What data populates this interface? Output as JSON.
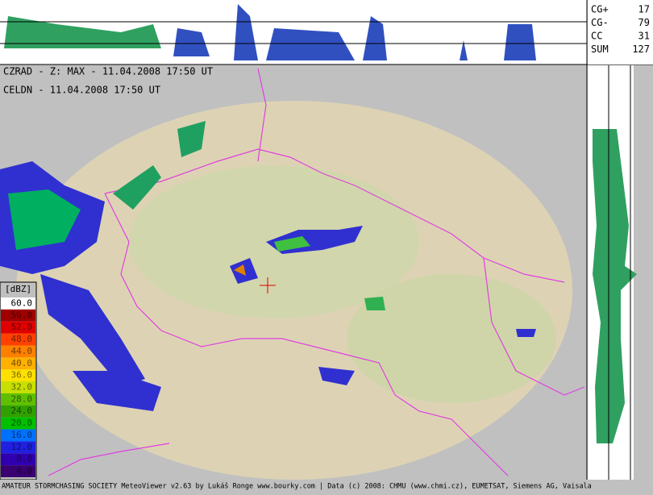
{
  "header": {
    "radar_line": "CZRAD - Z: MAX - 11.04.2008 17:50 UT",
    "lightning_line": "CELDN - 11.04.2008 17:50 UT"
  },
  "lightning_stats": [
    {
      "label": "CG+",
      "value": 17
    },
    {
      "label": "CG-",
      "value": 79
    },
    {
      "label": "CC",
      "value": 31
    },
    {
      "label": "SUM",
      "value": 127
    }
  ],
  "legend": {
    "title": "[dBZ]",
    "entries": [
      {
        "label": "60.0",
        "color": "#ffffff"
      },
      {
        "label": "56.0",
        "color": "#a00000"
      },
      {
        "label": "52.0",
        "color": "#e00000"
      },
      {
        "label": "48.0",
        "color": "#ff4000"
      },
      {
        "label": "44.0",
        "color": "#ff8000"
      },
      {
        "label": "40.0",
        "color": "#ffb000"
      },
      {
        "label": "36.0",
        "color": "#ffe000"
      },
      {
        "label": "32.0",
        "color": "#c8e000"
      },
      {
        "label": "28.0",
        "color": "#60c000"
      },
      {
        "label": "24.0",
        "color": "#30a000"
      },
      {
        "label": "20.0",
        "color": "#00c000"
      },
      {
        "label": "16.0",
        "color": "#0070ff"
      },
      {
        "label": "12.0",
        "color": "#2020e0"
      },
      {
        "label": "8.0",
        "color": "#3000b0"
      },
      {
        "label": "4.0",
        "color": "#380070"
      }
    ]
  },
  "footer": "AMATEUR STORMCHASING SOCIETY MeteoViewer v2.63 by Lukáš Ronge www.bourky.com | Data (c) 2008: CHMU (www.chmi.cz), EUMETSAT, Siemens AG, Vaisala"
}
